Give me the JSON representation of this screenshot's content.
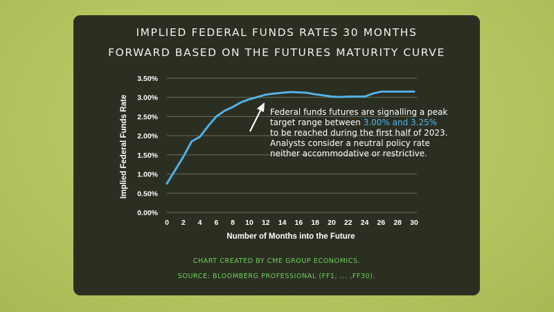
{
  "card": {
    "title_line_1": "IMPLIED FEDERAL FUNDS RATES 30 MONTHS",
    "title_line_2": "FORWARD BASED ON THE FUTURES MATURITY CURVE",
    "credit_line_1": "CHART CREATED BY CME GROUP ECONOMICS.",
    "credit_line_2": "SOURCE: BLOOMBERG PROFESSIONAL (FF1, ... ,FF30)."
  },
  "annotation": {
    "line_1": "Federal funds futures are signalling a peak",
    "line_2_pre": "target range between ",
    "line_2_highlight": "3.00% and 3.25%",
    "line_3": "to be reached during the first half of 2023.",
    "line_4": "Analysts consider a neutral policy rate",
    "line_5": "neither accommodative or restrictive."
  },
  "colors": {
    "background": "#b5c45e",
    "card": "#2b2f22",
    "line": "#52b2e8",
    "highlight": "#4fb3f0",
    "credit_text": "#6fd05a",
    "grid": "#6b6e60"
  },
  "chart_data": {
    "type": "line",
    "title": "IMPLIED FEDERAL FUNDS RATES 30 MONTHS FORWARD BASED ON THE FUTURES MATURITY CURVE",
    "xlabel": "Number of Months into the Future",
    "ylabel": "Implied Federal Funds Rate",
    "x_ticks": [
      "0",
      "2",
      "4",
      "6",
      "8",
      "10",
      "12",
      "14",
      "16",
      "18",
      "20",
      "22",
      "24",
      "26",
      "28",
      "30"
    ],
    "y_ticks": [
      "0.00%",
      "0.50%",
      "1.00%",
      "1.50%",
      "2.00%",
      "2.50%",
      "3.00%",
      "3.50%"
    ],
    "xlim": [
      0,
      30
    ],
    "ylim": [
      0,
      3.5
    ],
    "grid": "horizontal",
    "series": [
      {
        "x": [
          0,
          1,
          2,
          3,
          4,
          5,
          6,
          7,
          8,
          9,
          10,
          11,
          12,
          13,
          14,
          15,
          16,
          17,
          18,
          19,
          20,
          21,
          22,
          23,
          24,
          25,
          26,
          27,
          28,
          29,
          30
        ],
        "values": [
          0.75,
          1.1,
          1.45,
          1.85,
          1.97,
          2.25,
          2.5,
          2.65,
          2.75,
          2.87,
          2.95,
          3.01,
          3.07,
          3.1,
          3.12,
          3.14,
          3.13,
          3.12,
          3.08,
          3.05,
          3.02,
          3.01,
          3.02,
          3.02,
          3.02,
          3.1,
          3.15,
          3.15,
          3.15,
          3.15,
          3.15
        ]
      }
    ]
  }
}
